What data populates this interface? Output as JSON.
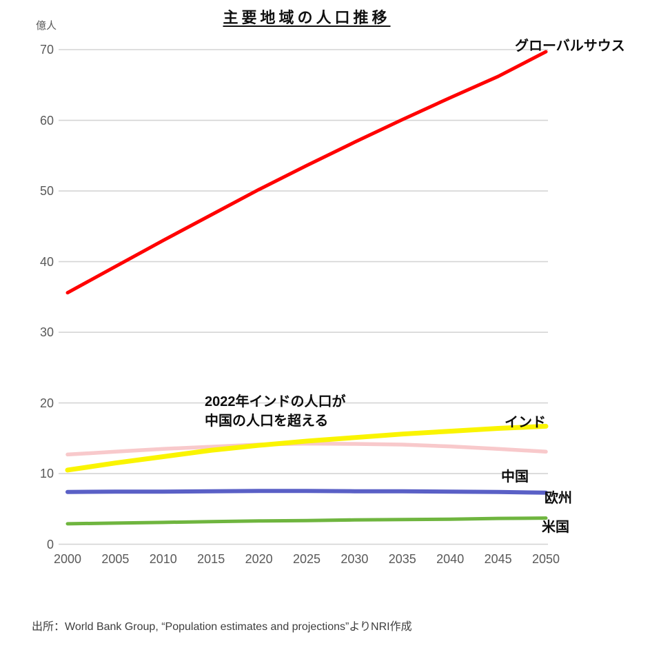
{
  "title": "主要地域の人口推移",
  "y_unit_label": "億人",
  "annotation": {
    "line1": "2022年インドの人口が",
    "line2": "中国の人口を超える"
  },
  "source": "出所：World Bank Group, “Population estimates and projections”よりNRI作成",
  "chart_data": {
    "type": "line",
    "title": "主要地域の人口推移",
    "ylabel": "億人",
    "xlabel": "",
    "ylim": [
      0,
      70
    ],
    "y_ticks": [
      0,
      10,
      20,
      30,
      40,
      50,
      60,
      70
    ],
    "grid": true,
    "legend_position": "end-of-line-labels",
    "x": [
      2000,
      2005,
      2010,
      2015,
      2020,
      2025,
      2030,
      2035,
      2040,
      2045,
      2050
    ],
    "series": [
      {
        "id": "china",
        "name": "中国",
        "color": "#f8c9cb",
        "width": 5.5,
        "values": [
          12.7,
          13.1,
          13.5,
          13.8,
          14.1,
          14.25,
          14.2,
          14.1,
          13.85,
          13.5,
          13.1
        ]
      },
      {
        "id": "india",
        "name": "インド",
        "color": "#faf400",
        "width": 7,
        "values": [
          10.5,
          11.5,
          12.4,
          13.3,
          14.0,
          14.6,
          15.1,
          15.6,
          16.0,
          16.4,
          16.7
        ]
      },
      {
        "id": "europe",
        "name": "欧州",
        "color": "#5a60c6",
        "width": 6,
        "values": [
          7.4,
          7.45,
          7.45,
          7.5,
          7.55,
          7.55,
          7.5,
          7.5,
          7.45,
          7.4,
          7.3
        ]
      },
      {
        "id": "us",
        "name": "米国",
        "color": "#6fb53f",
        "width": 5,
        "values": [
          2.9,
          3.0,
          3.1,
          3.2,
          3.3,
          3.35,
          3.45,
          3.5,
          3.55,
          3.65,
          3.7
        ]
      },
      {
        "id": "global-south",
        "name": "グローバルサウス",
        "color": "#ff0000",
        "width": 5,
        "values": [
          35.6,
          39.3,
          43.0,
          46.6,
          50.2,
          53.6,
          56.9,
          60.1,
          63.2,
          66.2,
          69.7
        ]
      }
    ]
  }
}
